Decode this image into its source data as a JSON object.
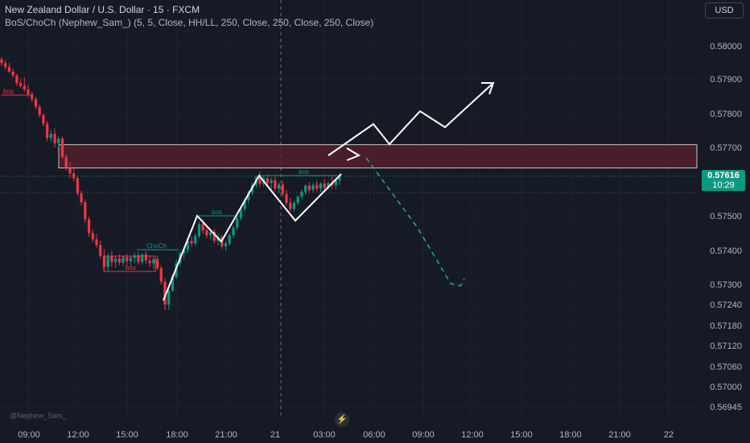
{
  "header": {
    "symbol_title": "New Zealand Dollar / U.S. Dollar · 15 · FXCM",
    "indicator_title": "BoS/ChoCh (Nephew_Sam_) (5, 5, Close, HH/LL, 250, Close, 250, Close, 250, Close)",
    "currency_button": "USD"
  },
  "last_price": {
    "price": "0.57616",
    "countdown": "10:29",
    "color": "#089981"
  },
  "watermark": "@Nephew_Sam_",
  "colors": {
    "background": "#161a25",
    "up": "#089981",
    "down": "#f23645",
    "zone_fill": "#5b1f2c",
    "arrow_white": "#ffffff",
    "arrow_projection": "#22ab94"
  },
  "chart_data": {
    "type": "candlestick",
    "y_axis": {
      "labels": [
        "0.58000",
        "0.57900",
        "0.57800",
        "0.57700",
        "0.57500",
        "0.57400",
        "0.57300",
        "0.57240",
        "0.57180",
        "0.57120",
        "0.57060",
        "0.57000",
        "0.56945"
      ]
    },
    "x_axis": {
      "labels": [
        "09:00",
        "12:00",
        "15:00",
        "18:00",
        "21:00",
        "21",
        "03:00",
        "06:00",
        "09:00",
        "12:00",
        "15:00",
        "18:00",
        "21:00",
        "22"
      ]
    },
    "candles": [
      [
        0.5796,
        0.57966,
        0.57938,
        0.57948
      ],
      [
        0.57948,
        0.57958,
        0.5793,
        0.57936
      ],
      [
        0.57936,
        0.57948,
        0.57918,
        0.57922
      ],
      [
        0.57922,
        0.57932,
        0.57904,
        0.5791
      ],
      [
        0.5791,
        0.57916,
        0.5788,
        0.57888
      ],
      [
        0.57888,
        0.579,
        0.57874,
        0.5788
      ],
      [
        0.5788,
        0.57905,
        0.57862,
        0.5787
      ],
      [
        0.5787,
        0.57882,
        0.57848,
        0.57856
      ],
      [
        0.57856,
        0.57864,
        0.57832,
        0.57842
      ],
      [
        0.57842,
        0.57848,
        0.57812,
        0.5782
      ],
      [
        0.5782,
        0.57826,
        0.57788,
        0.57796
      ],
      [
        0.57796,
        0.578,
        0.57762,
        0.5777
      ],
      [
        0.5777,
        0.57778,
        0.57718,
        0.57728
      ],
      [
        0.57728,
        0.57752,
        0.57716,
        0.5774
      ],
      [
        0.5774,
        0.57756,
        0.577,
        0.57712
      ],
      [
        0.57712,
        0.57734,
        0.577,
        0.57726
      ],
      [
        0.57726,
        0.57732,
        0.57666,
        0.57672
      ],
      [
        0.57672,
        0.5768,
        0.57632,
        0.5764
      ],
      [
        0.5764,
        0.57658,
        0.5761,
        0.57624
      ],
      [
        0.57624,
        0.5764,
        0.576,
        0.5761
      ],
      [
        0.5761,
        0.57618,
        0.5756,
        0.57566
      ],
      [
        0.57566,
        0.57574,
        0.5753,
        0.5754
      ],
      [
        0.5754,
        0.57548,
        0.5748,
        0.5749
      ],
      [
        0.5749,
        0.57498,
        0.5744,
        0.5745
      ],
      [
        0.5745,
        0.5746,
        0.57424,
        0.57432
      ],
      [
        0.57432,
        0.57448,
        0.57408,
        0.57416
      ],
      [
        0.57416,
        0.57428,
        0.57376,
        0.57384
      ],
      [
        0.57384,
        0.57404,
        0.5734,
        0.57352
      ],
      [
        0.57352,
        0.57392,
        0.5734,
        0.57384
      ],
      [
        0.57384,
        0.57398,
        0.57352,
        0.57366
      ],
      [
        0.57366,
        0.57382,
        0.5735,
        0.57376
      ],
      [
        0.57376,
        0.57388,
        0.57356,
        0.57364
      ],
      [
        0.57364,
        0.57384,
        0.57354,
        0.5738
      ],
      [
        0.5738,
        0.5739,
        0.57356,
        0.57368
      ],
      [
        0.57368,
        0.57382,
        0.57352,
        0.57378
      ],
      [
        0.57378,
        0.57394,
        0.57362,
        0.57386
      ],
      [
        0.57386,
        0.57396,
        0.57358,
        0.57366
      ],
      [
        0.57366,
        0.57392,
        0.5736,
        0.57388
      ],
      [
        0.57388,
        0.57398,
        0.5736,
        0.5737
      ],
      [
        0.5737,
        0.57384,
        0.57352,
        0.57362
      ],
      [
        0.57362,
        0.5738,
        0.57346,
        0.57374
      ],
      [
        0.57374,
        0.57384,
        0.57342,
        0.57348
      ],
      [
        0.57348,
        0.57356,
        0.573,
        0.57308
      ],
      [
        0.57308,
        0.57318,
        0.57224,
        0.5724
      ],
      [
        0.5724,
        0.5729,
        0.57224,
        0.57282
      ],
      [
        0.57282,
        0.5733,
        0.57276,
        0.57322
      ],
      [
        0.57322,
        0.57372,
        0.57316,
        0.57362
      ],
      [
        0.57362,
        0.57398,
        0.57352,
        0.57392
      ],
      [
        0.57392,
        0.5741,
        0.57374,
        0.57402
      ],
      [
        0.57402,
        0.57432,
        0.57392,
        0.57428
      ],
      [
        0.57428,
        0.5744,
        0.5741,
        0.5742
      ],
      [
        0.5742,
        0.57448,
        0.57414,
        0.57442
      ],
      [
        0.57442,
        0.57482,
        0.57434,
        0.57476
      ],
      [
        0.57476,
        0.5749,
        0.57448,
        0.57458
      ],
      [
        0.57458,
        0.57472,
        0.57436,
        0.57444
      ],
      [
        0.57444,
        0.57462,
        0.57432,
        0.57454
      ],
      [
        0.57454,
        0.57462,
        0.5742,
        0.57428
      ],
      [
        0.57428,
        0.57448,
        0.57414,
        0.57438
      ],
      [
        0.57438,
        0.57446,
        0.57404,
        0.57412
      ],
      [
        0.57412,
        0.57428,
        0.574,
        0.5742
      ],
      [
        0.5742,
        0.5745,
        0.57414,
        0.57444
      ],
      [
        0.57444,
        0.57472,
        0.57436,
        0.57466
      ],
      [
        0.57466,
        0.575,
        0.57458,
        0.57494
      ],
      [
        0.57494,
        0.57528,
        0.57486,
        0.5752
      ],
      [
        0.5752,
        0.57552,
        0.57512,
        0.57546
      ],
      [
        0.57546,
        0.57574,
        0.57536,
        0.57568
      ],
      [
        0.57568,
        0.57598,
        0.5756,
        0.5759
      ],
      [
        0.5759,
        0.57618,
        0.57582,
        0.57612
      ],
      [
        0.57612,
        0.57628,
        0.57584,
        0.57594
      ],
      [
        0.57594,
        0.57618,
        0.57586,
        0.5761
      ],
      [
        0.5761,
        0.57622,
        0.57586,
        0.57596
      ],
      [
        0.57596,
        0.57612,
        0.57578,
        0.57604
      ],
      [
        0.57604,
        0.57614,
        0.57572,
        0.5758
      ],
      [
        0.5758,
        0.57598,
        0.57566,
        0.57592
      ],
      [
        0.57592,
        0.57602,
        0.57556,
        0.57564
      ],
      [
        0.57564,
        0.57576,
        0.5753,
        0.57538
      ],
      [
        0.57538,
        0.57552,
        0.57512,
        0.5752
      ],
      [
        0.5752,
        0.57544,
        0.57512,
        0.57538
      ],
      [
        0.57538,
        0.5756,
        0.5753,
        0.57556
      ],
      [
        0.57556,
        0.57576,
        0.57548,
        0.5757
      ],
      [
        0.5757,
        0.57592,
        0.57562,
        0.57588
      ],
      [
        0.57588,
        0.57598,
        0.57566,
        0.57576
      ],
      [
        0.57576,
        0.57596,
        0.57568,
        0.5759
      ],
      [
        0.5759,
        0.57602,
        0.57572,
        0.5758
      ],
      [
        0.5758,
        0.57598,
        0.5757,
        0.57594
      ],
      [
        0.57594,
        0.57608,
        0.57574,
        0.57582
      ],
      [
        0.57582,
        0.576,
        0.57576,
        0.57596
      ],
      [
        0.57596,
        0.57614,
        0.5758,
        0.5759
      ],
      [
        0.5759,
        0.5761,
        0.57578,
        0.57604
      ],
      [
        0.57604,
        0.57622,
        0.5759,
        0.57616
      ]
    ],
    "supply_zone": {
      "top": 0.57708,
      "bottom": 0.5764
    },
    "last_price_line": 0.57616,
    "annotations": [
      {
        "text": "bos",
        "color": "#f23645"
      },
      {
        "text": "bos",
        "color": "#f23645"
      },
      {
        "text": "ChoCh",
        "color": "#089981"
      },
      {
        "text": "bos",
        "color": "#089981"
      },
      {
        "text": "bos",
        "color": "#089981"
      }
    ]
  }
}
